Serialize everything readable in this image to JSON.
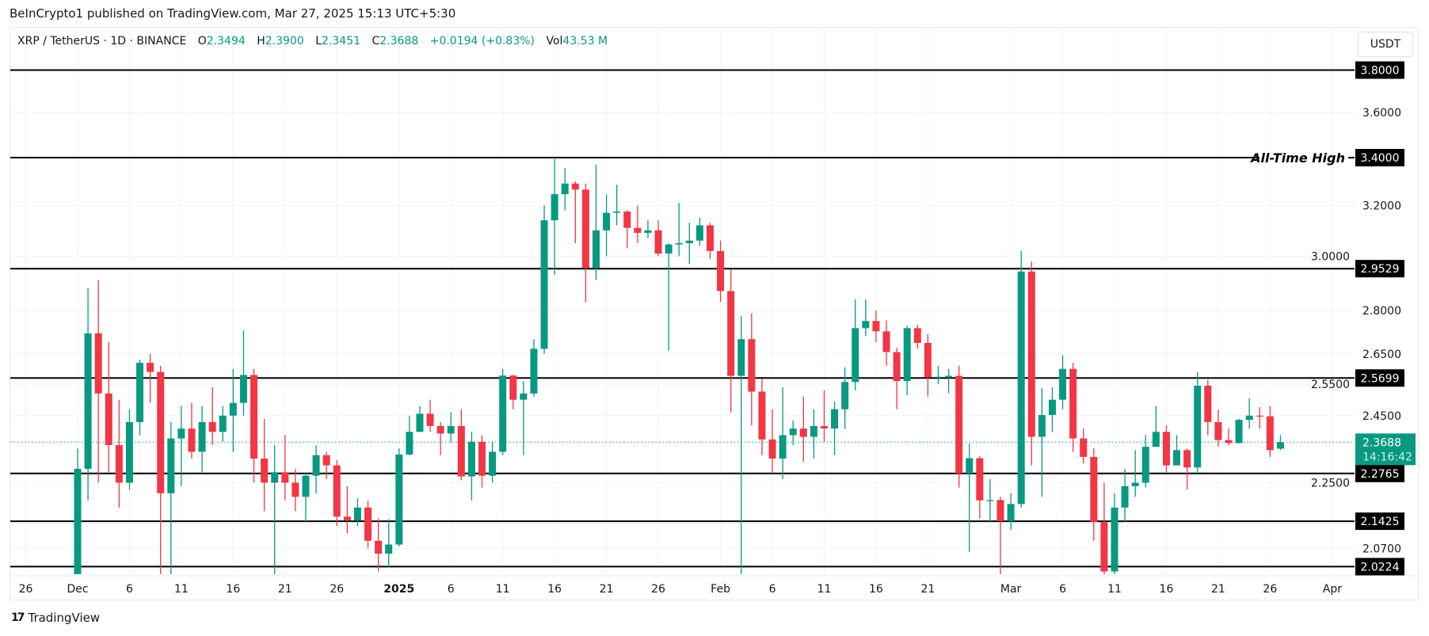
{
  "header": {
    "publisher_line": "BeInCrypto1 published on TradingView.com, Mar 27, 2025 15:13 UTC+5:30"
  },
  "legend": {
    "symbol": "XRP / TetherUS · 1D · BINANCE",
    "open_label": "O",
    "open": "2.3494",
    "high_label": "H",
    "high": "2.3900",
    "low_label": "L",
    "low": "2.3451",
    "close_label": "C",
    "close": "2.3688",
    "change": "+0.0194 (+0.83%)",
    "volume_label": "Vol",
    "volume": "43.53 M"
  },
  "currency_button": "USDT",
  "footer": {
    "logo_text": "TradingView"
  },
  "colors": {
    "up": "#089981",
    "down": "#f23645",
    "level_line": "#000000",
    "grid": "#f0f3fa"
  },
  "chart_data": {
    "type": "candlestick",
    "y_scale": "log",
    "ylim": [
      2.0224,
      3.8
    ],
    "grid": true,
    "x_ticks": [
      {
        "date": "2024-11-26",
        "label": "26"
      },
      {
        "date": "2024-12-01",
        "label": "Dec"
      },
      {
        "date": "2024-12-06",
        "label": "6"
      },
      {
        "date": "2024-12-11",
        "label": "11"
      },
      {
        "date": "2024-12-16",
        "label": "16"
      },
      {
        "date": "2024-12-21",
        "label": "21"
      },
      {
        "date": "2024-12-26",
        "label": "26"
      },
      {
        "date": "2025-01-01",
        "label": "2025"
      },
      {
        "date": "2025-01-06",
        "label": "6"
      },
      {
        "date": "2025-01-11",
        "label": "11"
      },
      {
        "date": "2025-01-16",
        "label": "16"
      },
      {
        "date": "2025-01-21",
        "label": "21"
      },
      {
        "date": "2025-01-26",
        "label": "26"
      },
      {
        "date": "2025-02-01",
        "label": "Feb"
      },
      {
        "date": "2025-02-06",
        "label": "6"
      },
      {
        "date": "2025-02-11",
        "label": "11"
      },
      {
        "date": "2025-02-16",
        "label": "16"
      },
      {
        "date": "2025-02-21",
        "label": "21"
      },
      {
        "date": "2025-03-01",
        "label": "Mar"
      },
      {
        "date": "2025-03-06",
        "label": "6"
      },
      {
        "date": "2025-03-11",
        "label": "11"
      },
      {
        "date": "2025-03-16",
        "label": "16"
      },
      {
        "date": "2025-03-21",
        "label": "21"
      },
      {
        "date": "2025-03-26",
        "label": "26"
      },
      {
        "date": "2025-04-01",
        "label": "Apr"
      }
    ],
    "y_ticks": [
      "3.6000",
      "3.2000",
      "3.0000",
      "2.8000",
      "2.6500",
      "2.5500",
      "2.4500",
      "2.2500",
      "2.0700"
    ],
    "levels": [
      {
        "value": 3.8,
        "label": "3.8000",
        "note": ""
      },
      {
        "value": 3.4,
        "label": "3.4000",
        "note": "All-Time High"
      },
      {
        "value": 2.9529,
        "label": "2.9529",
        "note": ""
      },
      {
        "value": 2.5699,
        "label": "2.5699",
        "note": ""
      },
      {
        "value": 2.2765,
        "label": "2.2765",
        "note": ""
      },
      {
        "value": 2.1425,
        "label": "2.1425",
        "note": ""
      },
      {
        "value": 2.0224,
        "label": "2.0224",
        "note": ""
      }
    ],
    "last_price": {
      "value": 2.3688,
      "label": "2.3688",
      "countdown": "14:16:42"
    },
    "columns": [
      "date",
      "open",
      "high",
      "low",
      "close"
    ],
    "ohlc": [
      [
        "2024-12-01",
        1.9,
        2.35,
        1.88,
        2.29
      ],
      [
        "2024-12-02",
        2.29,
        2.88,
        2.2,
        2.72
      ],
      [
        "2024-12-03",
        2.72,
        2.91,
        2.25,
        2.52
      ],
      [
        "2024-12-04",
        2.52,
        2.69,
        2.28,
        2.36
      ],
      [
        "2024-12-05",
        2.36,
        2.5,
        2.18,
        2.25
      ],
      [
        "2024-12-06",
        2.25,
        2.47,
        2.23,
        2.43
      ],
      [
        "2024-12-07",
        2.43,
        2.63,
        2.39,
        2.62
      ],
      [
        "2024-12-08",
        2.62,
        2.65,
        2.49,
        2.59
      ],
      [
        "2024-12-09",
        2.59,
        2.61,
        1.97,
        2.22
      ],
      [
        "2024-12-10",
        2.22,
        2.43,
        1.97,
        2.38
      ],
      [
        "2024-12-11",
        2.38,
        2.48,
        2.24,
        2.41
      ],
      [
        "2024-12-12",
        2.41,
        2.49,
        2.32,
        2.34
      ],
      [
        "2024-12-13",
        2.34,
        2.48,
        2.28,
        2.43
      ],
      [
        "2024-12-14",
        2.43,
        2.54,
        2.36,
        2.4
      ],
      [
        "2024-12-15",
        2.4,
        2.48,
        2.37,
        2.45
      ],
      [
        "2024-12-16",
        2.45,
        2.6,
        2.34,
        2.49
      ],
      [
        "2024-12-17",
        2.49,
        2.73,
        2.45,
        2.58
      ],
      [
        "2024-12-18",
        2.58,
        2.6,
        2.25,
        2.32
      ],
      [
        "2024-12-19",
        2.32,
        2.44,
        2.17,
        2.25
      ],
      [
        "2024-12-20",
        2.25,
        2.36,
        1.9,
        2.28
      ],
      [
        "2024-12-21",
        2.28,
        2.39,
        2.2,
        2.25
      ],
      [
        "2024-12-22",
        2.25,
        2.29,
        2.17,
        2.21
      ],
      [
        "2024-12-23",
        2.21,
        2.28,
        2.14,
        2.27
      ],
      [
        "2024-12-24",
        2.27,
        2.36,
        2.22,
        2.33
      ],
      [
        "2024-12-25",
        2.33,
        2.34,
        2.26,
        2.3
      ],
      [
        "2024-12-26",
        2.3,
        2.315,
        2.13,
        2.155
      ],
      [
        "2024-12-27",
        2.155,
        2.24,
        2.11,
        2.145
      ],
      [
        "2024-12-28",
        2.145,
        2.206,
        2.13,
        2.18
      ],
      [
        "2024-12-29",
        2.18,
        2.2,
        2.07,
        2.09
      ],
      [
        "2024-12-30",
        2.09,
        2.15,
        2.01,
        2.056
      ],
      [
        "2024-12-31",
        2.056,
        2.148,
        2.02,
        2.08
      ],
      [
        "2025-01-01",
        2.08,
        2.35,
        2.075,
        2.332
      ],
      [
        "2025-01-02",
        2.332,
        2.45,
        2.33,
        2.4
      ],
      [
        "2025-01-03",
        2.4,
        2.48,
        2.4,
        2.456
      ],
      [
        "2025-01-04",
        2.456,
        2.5,
        2.4,
        2.418
      ],
      [
        "2025-01-05",
        2.418,
        2.43,
        2.33,
        2.395
      ],
      [
        "2025-01-06",
        2.395,
        2.46,
        2.368,
        2.418
      ],
      [
        "2025-01-07",
        2.418,
        2.47,
        2.257,
        2.268
      ],
      [
        "2025-01-08",
        2.268,
        2.4,
        2.2,
        2.37
      ],
      [
        "2025-01-09",
        2.37,
        2.39,
        2.236,
        2.27
      ],
      [
        "2025-01-10",
        2.27,
        2.37,
        2.25,
        2.34
      ],
      [
        "2025-01-11",
        2.34,
        2.6,
        2.33,
        2.578
      ],
      [
        "2025-01-12",
        2.578,
        2.58,
        2.47,
        2.5
      ],
      [
        "2025-01-13",
        2.5,
        2.56,
        2.33,
        2.52
      ],
      [
        "2025-01-14",
        2.52,
        2.7,
        2.51,
        2.667
      ],
      [
        "2025-01-15",
        2.667,
        3.2,
        2.65,
        3.14
      ],
      [
        "2025-01-16",
        3.14,
        3.4,
        2.93,
        3.246
      ],
      [
        "2025-01-17",
        3.246,
        3.355,
        3.18,
        3.29
      ],
      [
        "2025-01-18",
        3.29,
        3.3,
        3.05,
        3.265
      ],
      [
        "2025-01-19",
        3.265,
        3.29,
        2.83,
        2.955
      ],
      [
        "2025-01-20",
        2.955,
        3.37,
        2.91,
        3.1
      ],
      [
        "2025-01-21",
        3.1,
        3.245,
        3.0,
        3.17
      ],
      [
        "2025-01-22",
        3.17,
        3.285,
        3.12,
        3.175
      ],
      [
        "2025-01-23",
        3.175,
        3.18,
        3.03,
        3.11
      ],
      [
        "2025-01-24",
        3.11,
        3.2,
        3.05,
        3.09
      ],
      [
        "2025-01-25",
        3.09,
        3.14,
        3.07,
        3.1
      ],
      [
        "2025-01-26",
        3.1,
        3.14,
        3.0,
        3.01
      ],
      [
        "2025-01-27",
        3.01,
        3.05,
        2.66,
        3.045
      ],
      [
        "2025-01-28",
        3.045,
        3.21,
        3.0,
        3.05
      ],
      [
        "2025-01-29",
        3.05,
        3.13,
        2.97,
        3.06
      ],
      [
        "2025-01-30",
        3.06,
        3.15,
        3.04,
        3.12
      ],
      [
        "2025-01-31",
        3.12,
        3.13,
        2.99,
        3.02
      ],
      [
        "2025-02-01",
        3.02,
        3.06,
        2.83,
        2.87
      ],
      [
        "2025-02-02",
        2.87,
        2.95,
        2.46,
        2.577
      ],
      [
        "2025-02-03",
        2.577,
        2.78,
        1.77,
        2.7
      ],
      [
        "2025-02-04",
        2.7,
        2.79,
        2.42,
        2.526
      ],
      [
        "2025-02-05",
        2.526,
        2.567,
        2.33,
        2.377
      ],
      [
        "2025-02-06",
        2.377,
        2.47,
        2.277,
        2.32
      ],
      [
        "2025-02-07",
        2.32,
        2.54,
        2.26,
        2.39
      ],
      [
        "2025-02-08",
        2.39,
        2.435,
        2.36,
        2.41
      ],
      [
        "2025-02-09",
        2.41,
        2.51,
        2.31,
        2.385
      ],
      [
        "2025-02-10",
        2.385,
        2.47,
        2.32,
        2.418
      ],
      [
        "2025-02-11",
        2.418,
        2.53,
        2.37,
        2.41
      ],
      [
        "2025-02-12",
        2.41,
        2.495,
        2.33,
        2.47
      ],
      [
        "2025-02-13",
        2.47,
        2.605,
        2.41,
        2.557
      ],
      [
        "2025-02-14",
        2.557,
        2.84,
        2.53,
        2.738
      ],
      [
        "2025-02-15",
        2.738,
        2.84,
        2.71,
        2.763
      ],
      [
        "2025-02-16",
        2.763,
        2.8,
        2.69,
        2.727
      ],
      [
        "2025-02-17",
        2.727,
        2.765,
        2.61,
        2.656
      ],
      [
        "2025-02-18",
        2.656,
        2.67,
        2.47,
        2.56
      ],
      [
        "2025-02-19",
        2.56,
        2.747,
        2.514,
        2.738
      ],
      [
        "2025-02-20",
        2.738,
        2.75,
        2.668,
        2.687
      ],
      [
        "2025-02-21",
        2.687,
        2.717,
        2.51,
        2.572
      ],
      [
        "2025-02-22",
        2.572,
        2.61,
        2.55,
        2.574
      ],
      [
        "2025-02-23",
        2.574,
        2.6,
        2.52,
        2.577
      ],
      [
        "2025-02-24",
        2.577,
        2.61,
        2.236,
        2.277
      ],
      [
        "2025-02-25",
        2.277,
        2.364,
        2.061,
        2.321
      ],
      [
        "2025-02-26",
        2.321,
        2.327,
        2.15,
        2.2
      ],
      [
        "2025-02-27",
        2.2,
        2.26,
        2.14,
        2.201
      ],
      [
        "2025-02-28",
        2.201,
        2.21,
        1.99,
        2.143
      ],
      [
        "2025-03-01",
        2.143,
        2.22,
        2.119,
        2.19
      ],
      [
        "2025-03-02",
        2.19,
        3.02,
        2.18,
        2.942
      ],
      [
        "2025-03-03",
        2.942,
        2.98,
        2.3,
        2.385
      ],
      [
        "2025-03-04",
        2.385,
        2.538,
        2.21,
        2.452
      ],
      [
        "2025-03-05",
        2.452,
        2.54,
        2.4,
        2.5
      ],
      [
        "2025-03-06",
        2.5,
        2.645,
        2.47,
        2.6
      ],
      [
        "2025-03-07",
        2.6,
        2.62,
        2.34,
        2.38
      ],
      [
        "2025-03-08",
        2.38,
        2.41,
        2.305,
        2.325
      ],
      [
        "2025-03-09",
        2.325,
        2.35,
        2.09,
        2.14
      ],
      [
        "2025-03-10",
        2.14,
        2.25,
        1.9,
        2.01
      ],
      [
        "2025-03-11",
        2.01,
        2.22,
        1.95,
        2.18
      ],
      [
        "2025-03-12",
        2.18,
        2.29,
        2.14,
        2.24
      ],
      [
        "2025-03-13",
        2.24,
        2.345,
        2.21,
        2.25
      ],
      [
        "2025-03-14",
        2.25,
        2.39,
        2.236,
        2.355
      ],
      [
        "2025-03-15",
        2.355,
        2.48,
        2.355,
        2.4
      ],
      [
        "2025-03-16",
        2.4,
        2.42,
        2.28,
        2.3
      ],
      [
        "2025-03-17",
        2.3,
        2.39,
        2.3,
        2.345
      ],
      [
        "2025-03-18",
        2.345,
        2.35,
        2.23,
        2.294
      ],
      [
        "2025-03-19",
        2.294,
        2.59,
        2.277,
        2.545
      ],
      [
        "2025-03-20",
        2.545,
        2.564,
        2.39,
        2.43
      ],
      [
        "2025-03-21",
        2.43,
        2.468,
        2.355,
        2.375
      ],
      [
        "2025-03-22",
        2.375,
        2.41,
        2.36,
        2.366
      ],
      [
        "2025-03-23",
        2.366,
        2.44,
        2.365,
        2.437
      ],
      [
        "2025-03-24",
        2.437,
        2.505,
        2.41,
        2.45
      ],
      [
        "2025-03-25",
        2.45,
        2.477,
        2.41,
        2.448
      ],
      [
        "2025-03-26",
        2.448,
        2.48,
        2.325,
        2.345
      ],
      [
        "2025-03-27",
        2.3494,
        2.39,
        2.3451,
        2.3688
      ]
    ]
  }
}
